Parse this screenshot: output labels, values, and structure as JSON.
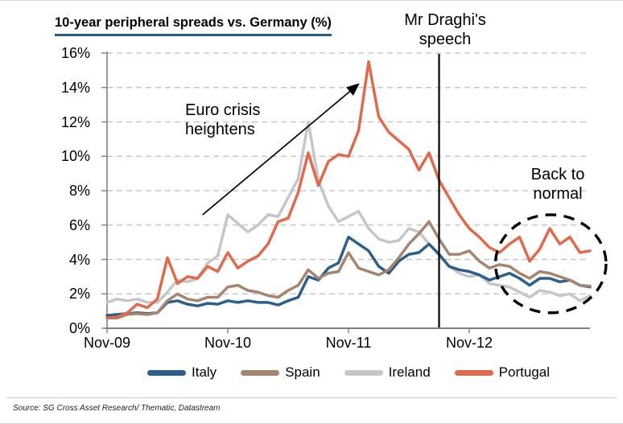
{
  "title": "10-year peripheral spreads vs. Germany (%)",
  "annotations": {
    "euro_crisis": {
      "line1": "Euro crisis",
      "line2": "heightens"
    },
    "draghi": {
      "line1": "Mr Draghi's",
      "line2": "speech"
    },
    "back_to_normal": {
      "line1": "Back to",
      "line2": "normal"
    }
  },
  "source": "Source: SG Cross Asset Research/ Thematic, Datastream",
  "chart_data": {
    "type": "line",
    "title": "10-year peripheral spreads vs. Germany (%)",
    "x_unit": "months since Nov-2009",
    "months_total": 49,
    "x_tick_labels": [
      "Nov-09",
      "Nov-10",
      "Nov-11",
      "Nov-12"
    ],
    "x_tick_month_indices": [
      0,
      12,
      24,
      36
    ],
    "y_tick_labels": [
      "0%",
      "2%",
      "4%",
      "6%",
      "8%",
      "10%",
      "12%",
      "14%",
      "16%"
    ],
    "y_tick_values": [
      0,
      2,
      4,
      6,
      8,
      10,
      12,
      14,
      16
    ],
    "ylim": [
      0,
      16
    ],
    "grid": "dashed-horizontal",
    "legend_position": "bottom",
    "axis_color": "#808080",
    "grid_color": "#bfbfbf",
    "series": [
      {
        "name": "Italy",
        "color": "#2c5f8c",
        "values": [
          0.75,
          0.8,
          0.85,
          0.9,
          0.85,
          0.9,
          1.5,
          1.6,
          1.4,
          1.3,
          1.45,
          1.4,
          1.6,
          1.5,
          1.6,
          1.5,
          1.5,
          1.35,
          1.6,
          1.8,
          3.0,
          2.8,
          3.5,
          3.8,
          5.3,
          4.9,
          4.5,
          3.6,
          3.2,
          3.9,
          4.3,
          4.4,
          4.9,
          4.3,
          3.6,
          3.4,
          3.3,
          3.1,
          2.8,
          3.0,
          3.2,
          2.9,
          2.5,
          2.9,
          2.9,
          2.7,
          2.8,
          2.5,
          2.4
        ]
      },
      {
        "name": "Spain",
        "color": "#a6846e",
        "values": [
          0.6,
          0.6,
          0.8,
          0.85,
          0.8,
          0.9,
          1.6,
          2.0,
          1.7,
          1.6,
          1.8,
          1.8,
          2.4,
          2.5,
          2.2,
          2.1,
          1.9,
          1.8,
          2.2,
          2.5,
          3.4,
          2.9,
          3.2,
          3.3,
          4.4,
          3.5,
          3.3,
          3.1,
          3.4,
          4.1,
          4.9,
          5.5,
          6.2,
          5.2,
          4.3,
          4.3,
          4.5,
          3.9,
          3.5,
          3.7,
          3.6,
          3.2,
          2.9,
          3.3,
          3.2,
          3.0,
          2.8,
          2.5,
          2.45
        ]
      },
      {
        "name": "Ireland",
        "color": "#c5c6c8",
        "values": [
          1.5,
          1.7,
          1.6,
          1.7,
          1.5,
          1.5,
          2.1,
          2.8,
          2.7,
          2.9,
          3.8,
          4.2,
          6.6,
          6.1,
          5.6,
          6.0,
          6.6,
          6.5,
          7.6,
          8.7,
          12.0,
          8.6,
          7.1,
          6.2,
          6.5,
          6.8,
          5.8,
          5.2,
          5.0,
          5.1,
          5.8,
          5.6,
          4.9,
          4.3,
          3.6,
          3.2,
          3.0,
          3.1,
          2.6,
          2.5,
          2.4,
          2.1,
          1.8,
          2.2,
          2.1,
          1.9,
          2.0,
          1.6,
          1.9
        ]
      },
      {
        "name": "Portugal",
        "color": "#e06a4c",
        "values": [
          0.6,
          0.65,
          0.9,
          1.4,
          1.2,
          1.7,
          4.1,
          2.6,
          3.0,
          2.9,
          3.6,
          3.3,
          4.4,
          3.5,
          3.9,
          4.2,
          4.9,
          6.2,
          6.4,
          7.9,
          10.2,
          8.3,
          9.7,
          10.1,
          10.0,
          11.5,
          15.5,
          12.3,
          11.4,
          10.9,
          10.4,
          9.2,
          10.2,
          8.6,
          7.6,
          6.6,
          5.8,
          5.3,
          4.7,
          4.4,
          4.9,
          5.3,
          3.9,
          4.6,
          5.8,
          4.9,
          5.3,
          4.4,
          4.5
        ]
      }
    ],
    "annotations": {
      "draghi_vline_month": 33,
      "crisis_arrow": {
        "from_month": 9.5,
        "from_value": 6.6,
        "to_month": 25,
        "to_value": 14.2
      },
      "back_to_normal_ellipse": {
        "center_month": 44.1,
        "center_value": 3.75,
        "rx_months": 5.5,
        "ry_value": 2.85
      }
    }
  }
}
